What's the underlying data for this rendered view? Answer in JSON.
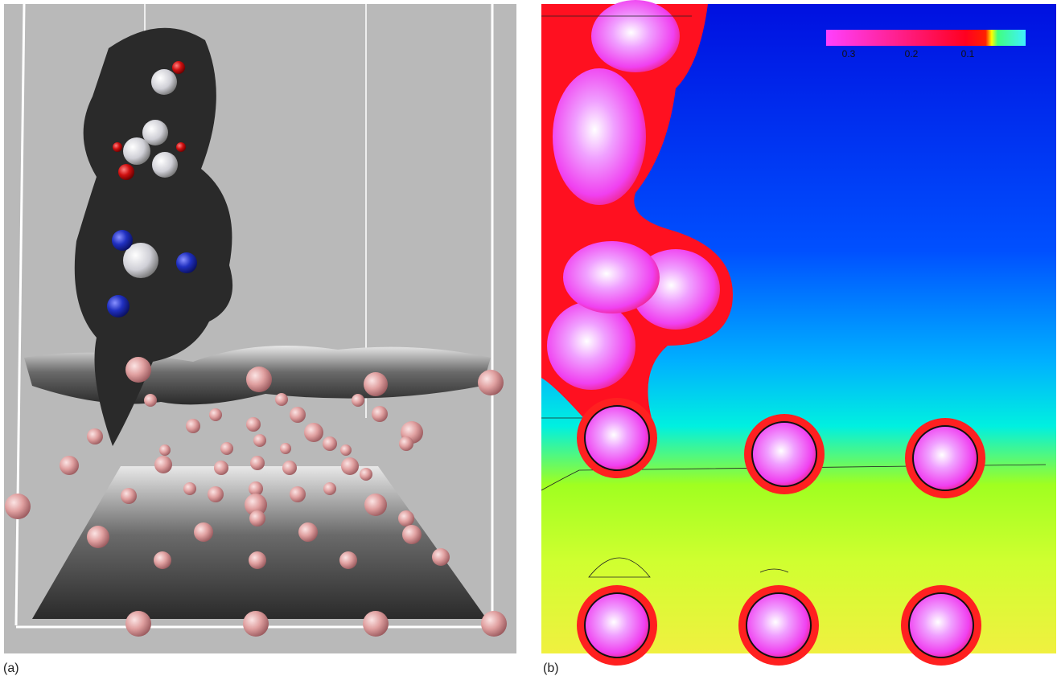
{
  "panels": [
    {
      "label": "(a)"
    },
    {
      "label": "(b)",
      "colorbar": {
        "ticks": [
          "0.3",
          "0.2",
          "0.1"
        ]
      }
    }
  ]
}
